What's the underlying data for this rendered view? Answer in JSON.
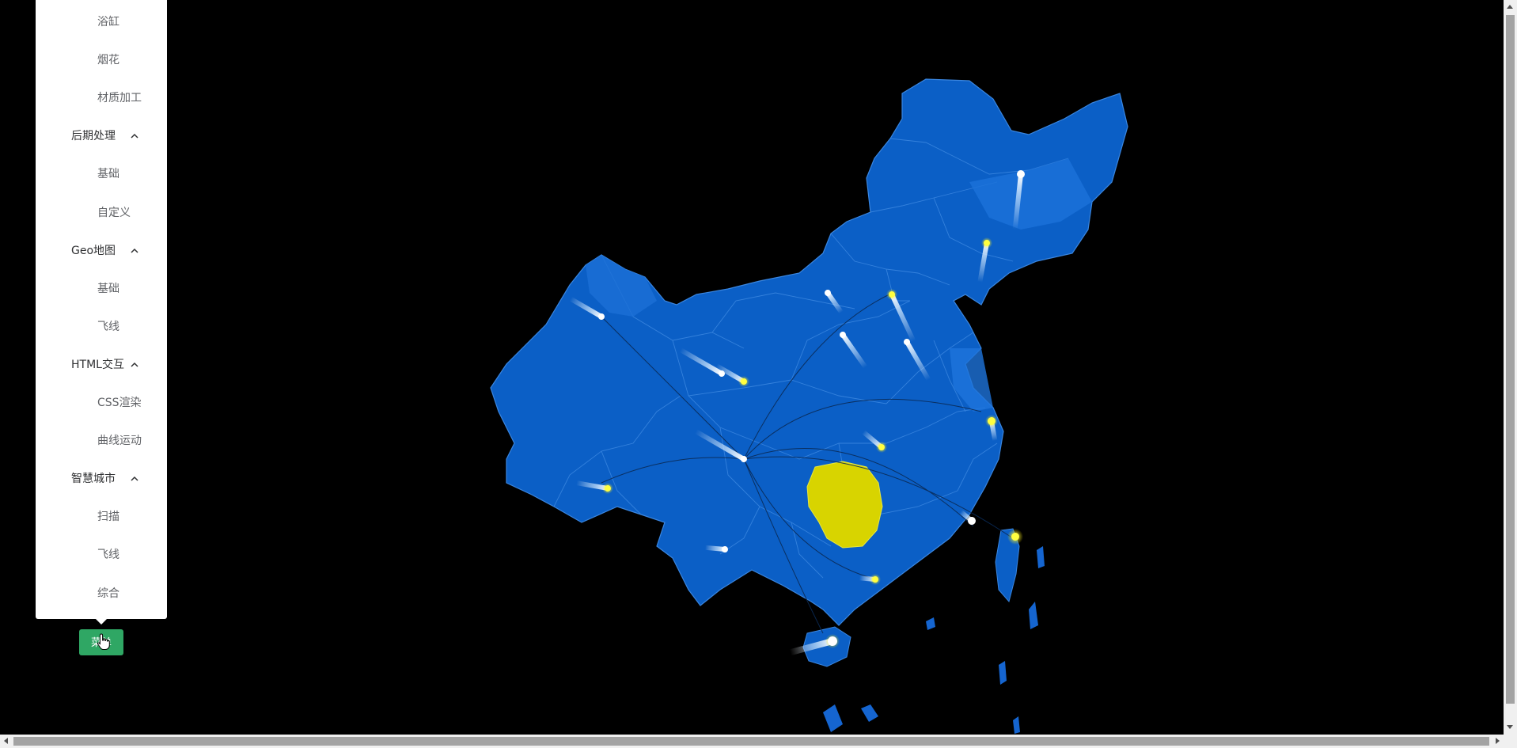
{
  "menu": {
    "items": [
      {
        "label": "浴缸",
        "type": "sub"
      },
      {
        "label": "烟花",
        "type": "sub"
      },
      {
        "label": "材质加工",
        "type": "sub"
      },
      {
        "label": "后期处理",
        "type": "group"
      },
      {
        "label": "基础",
        "type": "sub"
      },
      {
        "label": "自定义",
        "type": "sub"
      },
      {
        "label": "Geo地图",
        "type": "group"
      },
      {
        "label": "基础",
        "type": "sub"
      },
      {
        "label": "飞线",
        "type": "sub"
      },
      {
        "label": "HTML交互",
        "type": "group"
      },
      {
        "label": "CSS渲染",
        "type": "sub"
      },
      {
        "label": "曲线运动",
        "type": "sub"
      },
      {
        "label": "智慧城市",
        "type": "group"
      },
      {
        "label": "扫描",
        "type": "sub"
      },
      {
        "label": "飞线",
        "type": "sub"
      },
      {
        "label": "综合",
        "type": "sub"
      }
    ],
    "toggle_label": "菜单"
  },
  "icons": {
    "chevron": "chevron-up-icon",
    "cursor": "hand-cursor-icon"
  },
  "colors": {
    "map_fill": "#0b5fc6",
    "map_border": "#3a86e0",
    "highlight_province": "#d8d400",
    "meteor_core": "#ffffff",
    "meteor_glow": "#ffee00",
    "button_green": "#2fa764",
    "background": "#000000"
  }
}
